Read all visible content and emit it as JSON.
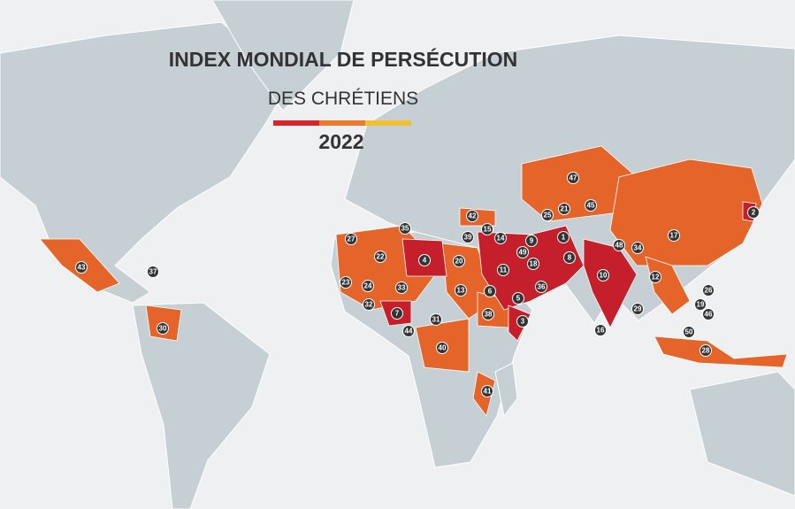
{
  "header": {
    "title": "INDEX MONDIAL DE PERSÉCUTION",
    "subtitle": "DES CHRÉTIENS",
    "year": "2022"
  },
  "markers": [
    {
      "rank": 47
    },
    {
      "rank": 42
    },
    {
      "rank": 25
    },
    {
      "rank": 21
    },
    {
      "rank": 45
    },
    {
      "rank": 15
    },
    {
      "rank": 14
    },
    {
      "rank": 9
    },
    {
      "rank": 1
    },
    {
      "rank": 39
    },
    {
      "rank": 27
    },
    {
      "rank": 35
    },
    {
      "rank": 49
    },
    {
      "rank": 8
    },
    {
      "rank": 48
    },
    {
      "rank": 34
    },
    {
      "rank": 17
    },
    {
      "rank": 2
    },
    {
      "rank": 4
    },
    {
      "rank": 20
    },
    {
      "rank": 22
    },
    {
      "rank": 18
    },
    {
      "rank": 11
    },
    {
      "rank": 43
    },
    {
      "rank": 37
    },
    {
      "rank": 10
    },
    {
      "rank": 12
    },
    {
      "rank": 23
    },
    {
      "rank": 24
    },
    {
      "rank": 33
    },
    {
      "rank": 13
    },
    {
      "rank": 6
    },
    {
      "rank": 36
    },
    {
      "rank": 5
    },
    {
      "rank": 26
    },
    {
      "rank": 32
    },
    {
      "rank": 29
    },
    {
      "rank": 19
    },
    {
      "rank": 7
    },
    {
      "rank": 38
    },
    {
      "rank": 46
    },
    {
      "rank": 31
    },
    {
      "rank": 3
    },
    {
      "rank": 30
    },
    {
      "rank": 16
    },
    {
      "rank": 44
    },
    {
      "rank": 50
    },
    {
      "rank": 40
    },
    {
      "rank": 28
    },
    {
      "rank": 41
    }
  ]
}
